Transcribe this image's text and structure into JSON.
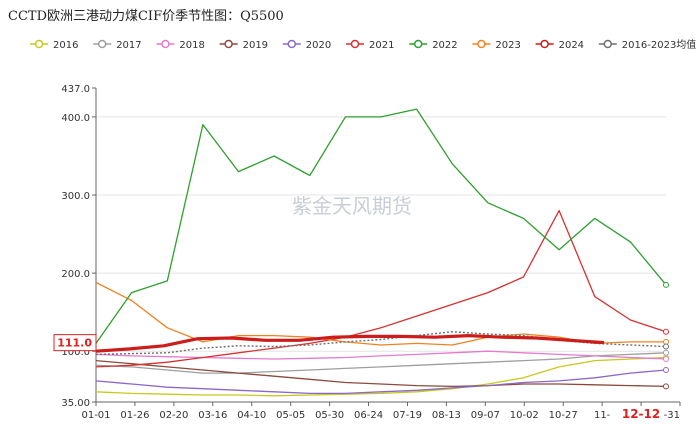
{
  "chart_data": {
    "type": "line",
    "title": "CCTD欧洲三港动力煤CIF价季节性图：Q5500",
    "watermark": "紫金天风期货",
    "yticks": [
      "437.0",
      "400.0",
      "300.0",
      "200.0",
      "100.0",
      "35.00"
    ],
    "ylim": [
      35,
      437
    ],
    "xticks": [
      "01-01",
      "01-26",
      "02-20",
      "03-16",
      "04-10",
      "05-05",
      "05-30",
      "06-24",
      "07-19",
      "08-13",
      "09-07",
      "10-02",
      "10-27",
      "11-",
      "12-12",
      "-31"
    ],
    "last_value_label": "111.0",
    "series": [
      {
        "name": "2016",
        "color": "#c8c81e",
        "values": [
          48,
          46,
          45,
          44,
          44,
          43,
          44,
          45,
          46,
          48,
          52,
          58,
          66,
          80,
          88,
          90,
          92
        ]
      },
      {
        "name": "2017",
        "color": "#9e9e9e",
        "values": [
          82,
          80,
          76,
          72,
          72,
          74,
          76,
          78,
          80,
          82,
          84,
          86,
          88,
          90,
          94,
          96,
          98
        ]
      },
      {
        "name": "2018",
        "color": "#e67ad0",
        "values": [
          96,
          94,
          93,
          92,
          91,
          90,
          91,
          92,
          94,
          96,
          98,
          100,
          98,
          96,
          94,
          92,
          90
        ]
      },
      {
        "name": "2019",
        "color": "#8b4a3c",
        "values": [
          88,
          84,
          80,
          76,
          72,
          68,
          64,
          60,
          58,
          56,
          55,
          56,
          58,
          58,
          57,
          56,
          55
        ]
      },
      {
        "name": "2020",
        "color": "#8a68c8",
        "values": [
          62,
          58,
          54,
          52,
          50,
          48,
          46,
          46,
          48,
          50,
          53,
          56,
          60,
          62,
          66,
          72,
          76
        ]
      },
      {
        "name": "2021",
        "color": "#d83030",
        "values": [
          80,
          82,
          86,
          92,
          98,
          104,
          110,
          118,
          130,
          145,
          160,
          175,
          195,
          280,
          170,
          140,
          125
        ]
      },
      {
        "name": "2022",
        "color": "#2ea02e",
        "values": [
          110,
          175,
          190,
          390,
          330,
          350,
          325,
          400,
          400,
          410,
          340,
          290,
          270,
          230,
          270,
          240,
          185
        ]
      },
      {
        "name": "2023",
        "color": "#f0821e",
        "values": [
          188,
          165,
          130,
          112,
          120,
          120,
          118,
          112,
          108,
          110,
          108,
          118,
          122,
          118,
          110,
          112,
          112
        ]
      },
      {
        "name": "2024",
        "color": "#cc1c1c",
        "values": [
          100,
          103,
          107,
          116,
          117,
          114,
          114,
          118,
          119,
          119,
          118,
          120,
          118,
          117,
          114,
          111
        ]
      },
      {
        "name": "2016-2023均值",
        "color": "#6e6e6e",
        "values": [
          96,
          97,
          98,
          104,
          107,
          106,
          108,
          112,
          115,
          120,
          125,
          122,
          120,
          114,
          110,
          108,
          106
        ]
      }
    ]
  }
}
